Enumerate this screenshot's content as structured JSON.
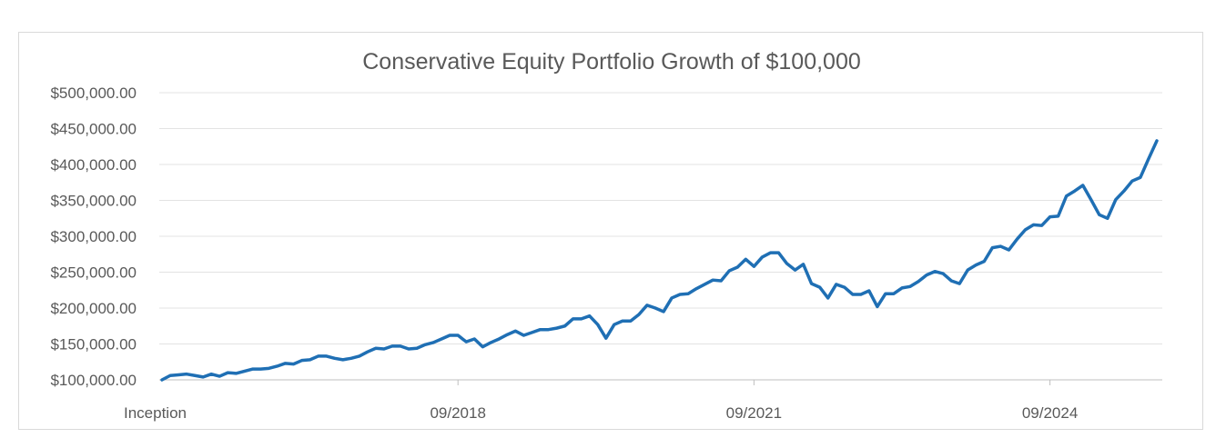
{
  "chart_data": {
    "type": "line",
    "title": "Conservative Equity Portfolio Growth of $100,000",
    "xlabel": "",
    "ylabel": "",
    "ylim": [
      100000,
      500000
    ],
    "yticks": [
      "$100,000.00",
      "$150,000.00",
      "$200,000.00",
      "$250,000.00",
      "$300,000.00",
      "$350,000.00",
      "$400,000.00",
      "$450,000.00",
      "$500,000.00"
    ],
    "xtick_labels": [
      {
        "label": "Inception",
        "x": "09/2015"
      },
      {
        "label": "09/2018",
        "x": "09/2018"
      },
      {
        "label": "09/2021",
        "x": "09/2021"
      },
      {
        "label": "09/2024",
        "x": "09/2024"
      }
    ],
    "grid": true,
    "legend": "none",
    "line_color": "#1f6fb4",
    "series": [
      {
        "x": [
          "09/2015",
          "10/2015",
          "11/2015",
          "12/2015",
          "01/2016",
          "02/2016",
          "03/2016",
          "04/2016",
          "05/2016",
          "06/2016",
          "07/2016",
          "08/2016",
          "09/2016",
          "10/2016",
          "11/2016",
          "12/2016",
          "01/2017",
          "02/2017",
          "03/2017",
          "04/2017",
          "05/2017",
          "06/2017",
          "07/2017",
          "08/2017",
          "09/2017",
          "10/2017",
          "11/2017",
          "12/2017",
          "01/2018",
          "02/2018",
          "03/2018",
          "04/2018",
          "05/2018",
          "06/2018",
          "07/2018",
          "08/2018",
          "09/2018",
          "10/2018",
          "11/2018",
          "12/2018",
          "01/2019",
          "02/2019",
          "03/2019",
          "04/2019",
          "05/2019",
          "06/2019",
          "07/2019",
          "08/2019",
          "09/2019",
          "10/2019",
          "11/2019",
          "12/2019",
          "01/2020",
          "02/2020",
          "03/2020",
          "04/2020",
          "05/2020",
          "06/2020",
          "07/2020",
          "08/2020",
          "09/2020",
          "10/2020",
          "11/2020",
          "12/2020",
          "01/2021",
          "02/2021",
          "03/2021",
          "04/2021",
          "05/2021",
          "06/2021",
          "07/2021",
          "08/2021",
          "09/2021",
          "10/2021",
          "11/2021",
          "12/2021",
          "01/2022",
          "02/2022",
          "03/2022",
          "04/2022",
          "05/2022",
          "06/2022",
          "07/2022",
          "08/2022",
          "09/2022",
          "10/2022",
          "11/2022",
          "12/2022",
          "01/2023",
          "02/2023",
          "03/2023",
          "04/2023",
          "05/2023",
          "06/2023",
          "07/2023",
          "08/2023",
          "09/2023",
          "10/2023",
          "11/2023",
          "12/2023",
          "01/2024",
          "02/2024",
          "03/2024",
          "04/2024",
          "05/2024",
          "06/2024",
          "07/2024",
          "08/2024",
          "09/2024",
          "10/2024",
          "11/2024",
          "12/2024",
          "01/2025",
          "02/2025",
          "03/2025",
          "04/2025",
          "05/2025",
          "06/2025",
          "07/2025",
          "08/2025",
          "09/2025",
          "10/2025"
        ],
        "values": [
          100000,
          106000,
          107000,
          108000,
          106000,
          104000,
          108000,
          105000,
          110000,
          109000,
          112000,
          115000,
          115000,
          116000,
          119000,
          123000,
          122000,
          127000,
          128000,
          133000,
          133000,
          130000,
          128000,
          130000,
          133000,
          139000,
          144000,
          143000,
          147000,
          147000,
          143000,
          144000,
          149000,
          152000,
          157000,
          162000,
          162000,
          153000,
          157000,
          146000,
          152000,
          157000,
          163000,
          168000,
          162000,
          166000,
          170000,
          170000,
          172000,
          175000,
          185000,
          185000,
          189000,
          177000,
          158000,
          177000,
          182000,
          182000,
          191000,
          204000,
          200000,
          195000,
          214000,
          219000,
          220000,
          227000,
          233000,
          239000,
          238000,
          252000,
          257000,
          268000,
          258000,
          271000,
          277000,
          277000,
          262000,
          253000,
          261000,
          234000,
          229000,
          214000,
          233000,
          229000,
          219000,
          219000,
          224000,
          202000,
          220000,
          220000,
          228000,
          230000,
          237000,
          246000,
          251000,
          248000,
          238000,
          234000,
          253000,
          260000,
          265000,
          284000,
          286000,
          281000,
          296000,
          309000,
          316000,
          315000,
          327000,
          328000,
          356000,
          363000,
          371000,
          351000,
          330000,
          325000,
          351000,
          363000,
          377000,
          382000,
          408000,
          433000
        ]
      }
    ]
  }
}
